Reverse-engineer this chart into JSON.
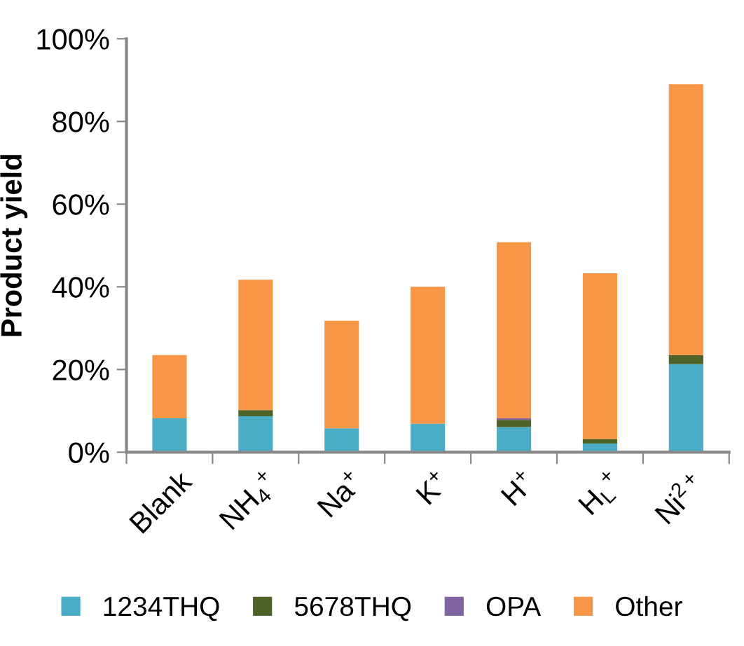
{
  "chart_data": {
    "type": "bar",
    "stacked": true,
    "ylabel": "Product yield",
    "categories": [
      "Blank",
      "NH$_{4}$$^{+}$",
      "Na$^{+}$",
      "K$^{+}$",
      "H$^{+}$",
      "H$_{L}$$^{+}$",
      "Ni$^{2+}$"
    ],
    "series": [
      {
        "name": "1234THQ",
        "color": "#4bacc6",
        "values": [
          8.2,
          8.7,
          5.8,
          6.9,
          6.1,
          2.1,
          21.3
        ]
      },
      {
        "name": "5678THQ",
        "color": "#4f6228",
        "values": [
          0,
          1.5,
          0,
          0,
          1.7,
          1.1,
          2.2
        ]
      },
      {
        "name": "OPA",
        "color": "#8064a2",
        "values": [
          0,
          0,
          0,
          0,
          0.4,
          0,
          0
        ]
      },
      {
        "name": "Other",
        "color": "#f79646",
        "values": [
          15.3,
          31.5,
          26.0,
          33.1,
          42.6,
          40.1,
          65.5
        ]
      }
    ],
    "ylim": [
      0,
      100
    ],
    "yticks": [
      {
        "value": 0,
        "label": "0%"
      },
      {
        "value": 20,
        "label": "20%"
      },
      {
        "value": 40,
        "label": "40%"
      },
      {
        "value": 60,
        "label": "60%"
      },
      {
        "value": 80,
        "label": "80%"
      },
      {
        "value": 100,
        "label": "100%"
      }
    ],
    "grid": false,
    "legend": "bottom"
  }
}
